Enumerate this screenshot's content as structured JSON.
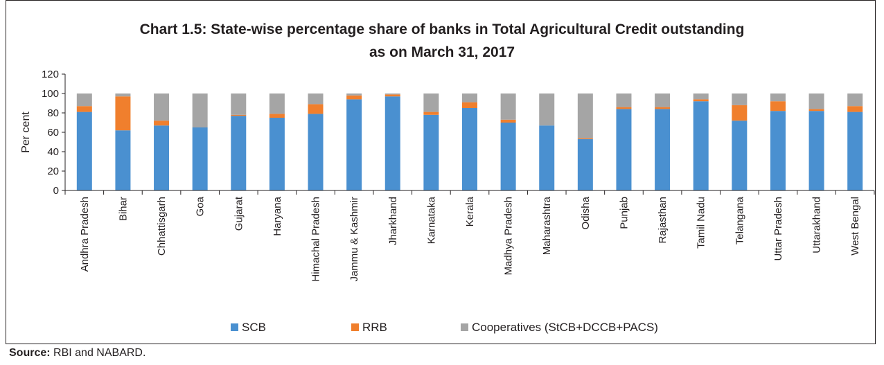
{
  "title_line1": "Chart 1.5: State-wise percentage share of banks in Total Agricultural Credit outstanding",
  "title_line2": "as on March 31, 2017",
  "source_label": "Source:",
  "source_text": "RBI and NABARD.",
  "chart_data": {
    "type": "bar",
    "stacked": true,
    "ylabel": "Per cent",
    "xlabel": "",
    "ylim": [
      0,
      120
    ],
    "yticks": [
      0,
      20,
      40,
      60,
      80,
      100,
      120
    ],
    "grid": false,
    "legend_position": "bottom",
    "categories": [
      "Andhra Pradesh",
      "Bihar",
      "Chhattisgarh",
      "Goa",
      "Gujarat",
      "Haryana",
      "Himachal Pradesh",
      "Jammu & Kashmir",
      "Jharkhand",
      "Karnataka",
      "Kerala",
      "Madhya Pradesh",
      "Maharashtra",
      "Odisha",
      "Punjab",
      "Rajasthan",
      "Tamil Nadu",
      "Telangana",
      "Uttar Pradesh",
      "Uttarakhand",
      "West Bengal"
    ],
    "series": [
      {
        "name": "SCB",
        "color": "#4a90d0",
        "values": [
          81,
          62,
          67,
          65,
          77,
          75,
          79,
          94,
          97,
          78,
          85,
          70,
          67,
          53,
          84,
          84,
          92,
          72,
          82,
          82,
          81
        ]
      },
      {
        "name": "RRB",
        "color": "#f07f2d",
        "values": [
          6,
          35,
          5,
          0,
          1,
          4,
          10,
          4,
          2,
          3,
          6,
          3,
          0,
          1,
          2,
          2,
          2,
          16,
          10,
          2,
          6
        ]
      },
      {
        "name": "Cooperatives (StCB+DCCB+PACS)",
        "color": "#a5a5a5",
        "values": [
          13,
          3,
          28,
          35,
          22,
          21,
          11,
          2,
          1,
          19,
          9,
          27,
          33,
          46,
          14,
          14,
          6,
          12,
          8,
          16,
          13
        ]
      }
    ]
  }
}
